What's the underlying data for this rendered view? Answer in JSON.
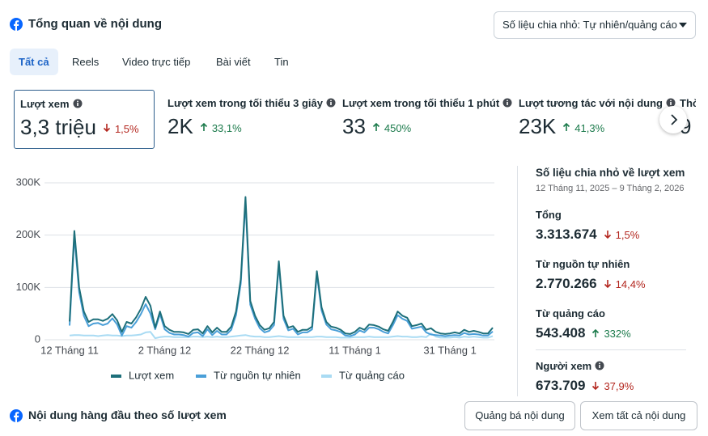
{
  "header": {
    "title": "Tổng quan về nội dung",
    "dropdown": "Số liệu chia nhỏ: Tự nhiên/quảng cáo"
  },
  "tabs": {
    "items": [
      "Tất cả",
      "Reels",
      "Video trực tiếp",
      "Bài viết",
      "Tin"
    ],
    "selected": 0
  },
  "metrics": {
    "selected": 0,
    "items": [
      {
        "label": "Lượt xem",
        "value": "3,3 triệu",
        "change": "1,5%",
        "trend": "down"
      },
      {
        "label": "Lượt xem trong tối thiểu 3 giây",
        "value": "2K",
        "change": "33,1%",
        "trend": "up"
      },
      {
        "label": "Lượt xem trong tối thiểu 1 phút",
        "value": "33",
        "change": "450%",
        "trend": "up"
      },
      {
        "label": "Lượt tương tác với nội dung",
        "value": "23K",
        "change": "41,3%",
        "trend": "up"
      },
      {
        "label": "Thờ",
        "value": "9"
      }
    ]
  },
  "chart_data": {
    "type": "line",
    "legend": "bottom",
    "grid": true,
    "categories": [
      "12 Tháng 11",
      null,
      null,
      null,
      null,
      null,
      null,
      null,
      null,
      null,
      null,
      null,
      null,
      null,
      null,
      null,
      null,
      null,
      null,
      null,
      "2 Tháng 12",
      null,
      null,
      null,
      null,
      null,
      null,
      null,
      null,
      null,
      null,
      null,
      null,
      null,
      null,
      null,
      null,
      null,
      null,
      null,
      "22 Tháng 12",
      null,
      null,
      null,
      null,
      null,
      null,
      null,
      null,
      null,
      null,
      null,
      null,
      null,
      null,
      null,
      null,
      null,
      null,
      null,
      "11 Tháng 1",
      null,
      null,
      null,
      null,
      null,
      null,
      null,
      null,
      null,
      null,
      null,
      null,
      null,
      null,
      null,
      null,
      null,
      null,
      null,
      "31 Tháng 1",
      null,
      null,
      null,
      null,
      null,
      null,
      null,
      null,
      null
    ],
    "ylim": [
      0,
      300000
    ],
    "yticks": [
      0,
      {
        "value": 100000,
        "label": "100K"
      },
      {
        "value": 200000,
        "label": "200K"
      },
      {
        "value": 300000,
        "label": "300K"
      }
    ],
    "series": [
      {
        "name": "Lượt xem",
        "color": "#1d6f7a",
        "values": [
          35000,
          208000,
          100000,
          54000,
          34000,
          39000,
          39000,
          36000,
          40000,
          49000,
          37000,
          15000,
          34000,
          31000,
          43000,
          59000,
          82000,
          65000,
          23000,
          54000,
          26000,
          19000,
          15000,
          15000,
          14000,
          11000,
          19000,
          20000,
          12000,
          26000,
          14000,
          23000,
          15000,
          15000,
          25000,
          54000,
          116000,
          273000,
          74000,
          46000,
          28000,
          19000,
          22000,
          34000,
          150000,
          46000,
          23000,
          26000,
          15000,
          19000,
          19000,
          25000,
          131000,
          62000,
          34000,
          25000,
          23000,
          19000,
          12000,
          11000,
          15000,
          23000,
          19000,
          29000,
          28000,
          25000,
          20000,
          17000,
          34000,
          54000,
          46000,
          42000,
          26000,
          28000,
          31000,
          19000,
          22000,
          15000,
          12000,
          11000,
          12000,
          14000,
          12000,
          19000,
          15000,
          17000,
          15000,
          12000,
          12000,
          23000
        ]
      },
      {
        "name": "Từ nguồn tự nhiên",
        "color": "#4a9fd8",
        "values": [
          27000,
          199000,
          91000,
          46000,
          26000,
          31000,
          32000,
          28000,
          31000,
          41000,
          29000,
          8000,
          26000,
          23000,
          34000,
          49000,
          68000,
          50000,
          20000,
          49000,
          20000,
          13000,
          10000,
          10000,
          9000,
          6000,
          13000,
          14000,
          7000,
          20000,
          9000,
          17000,
          10000,
          10000,
          19000,
          47000,
          108000,
          264000,
          67000,
          40000,
          22000,
          14000,
          17000,
          28000,
          143000,
          40000,
          18000,
          21000,
          10000,
          14000,
          14000,
          20000,
          125000,
          56000,
          29000,
          20000,
          18000,
          15000,
          8000,
          7000,
          10000,
          18000,
          14000,
          23000,
          23000,
          20000,
          15000,
          12000,
          28000,
          47000,
          40000,
          36000,
          21000,
          23000,
          25000,
          14000,
          10000,
          9000,
          8000,
          7000,
          8000,
          9000,
          8000,
          13000,
          10000,
          11000,
          10000,
          8000,
          8000,
          16000
        ]
      },
      {
        "name": "Từ quảng cáo",
        "color": "#a9dbf3",
        "values": [
          8000,
          9000,
          9000,
          8000,
          8000,
          8000,
          7000,
          8000,
          9000,
          8000,
          8000,
          7000,
          8000,
          8000,
          9000,
          10000,
          14000,
          15000,
          3000,
          5000,
          6000,
          6000,
          5000,
          5000,
          5000,
          5000,
          6000,
          6000,
          5000,
          6000,
          5000,
          6000,
          5000,
          5000,
          6000,
          7000,
          8000,
          9000,
          7000,
          6000,
          6000,
          5000,
          5000,
          6000,
          7000,
          6000,
          5000,
          5000,
          5000,
          5000,
          5000,
          5000,
          6000,
          6000,
          5000,
          5000,
          5000,
          4000,
          4000,
          4000,
          5000,
          5000,
          5000,
          6000,
          5000,
          5000,
          5000,
          5000,
          6000,
          7000,
          6000,
          6000,
          5000,
          5000,
          6000,
          5000,
          12000,
          6000,
          4000,
          4000,
          4000,
          5000,
          4000,
          6000,
          5000,
          6000,
          5000,
          4000,
          4000,
          7000
        ]
      }
    ]
  },
  "breakdown": {
    "title": "Số liệu chia nhỏ về lượt xem",
    "date_range": "12 Tháng 11, 2025 – 9 Tháng 2, 2026",
    "items": [
      {
        "label": "Tổng",
        "value": "3.313.674",
        "change": "1,5%",
        "trend": "down"
      },
      {
        "label": "Từ nguồn tự nhiên",
        "value": "2.770.266",
        "change": "14,4%",
        "trend": "down"
      },
      {
        "label": "Từ quảng cáo",
        "value": "543.408",
        "change": "332%",
        "trend": "up"
      },
      {
        "label": "Người xem",
        "value": "673.709",
        "change": "37,9%",
        "trend": "down",
        "info": true
      }
    ]
  },
  "footer": {
    "title": "Nội dung hàng đầu theo số lượt xem",
    "buttons": [
      "Quảng bá nội dung",
      "Xem tất cả nội dung"
    ]
  }
}
